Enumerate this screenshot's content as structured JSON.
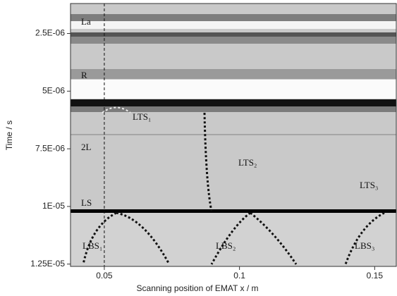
{
  "chart_data": {
    "type": "bscan",
    "x_label": "Scanning position of EMAT x / m",
    "y_label": "Time / s",
    "xlim": [
      0.0375,
      0.158
    ],
    "xticks": [
      0.05,
      0.1,
      0.15
    ],
    "ylim": [
      1.2e-06,
      1.26e-05
    ],
    "y_reversed": true,
    "yticks": [
      {
        "value": 2.5e-06,
        "label": "2.5E-06"
      },
      {
        "value": 5e-06,
        "label": "5E-06"
      },
      {
        "value": 7.5e-06,
        "label": "7.5E-06"
      },
      {
        "value": 1e-05,
        "label": "1E-05"
      },
      {
        "value": 1.25e-05,
        "label": "1.25E-05"
      }
    ],
    "reference_line_x": 0.05,
    "annotations": [
      "La",
      "R",
      "LTS₁",
      "2L",
      "LTS₂",
      "LTS₃",
      "LS",
      "LBS₁",
      "LBS₂",
      "LBS₃"
    ]
  }
}
